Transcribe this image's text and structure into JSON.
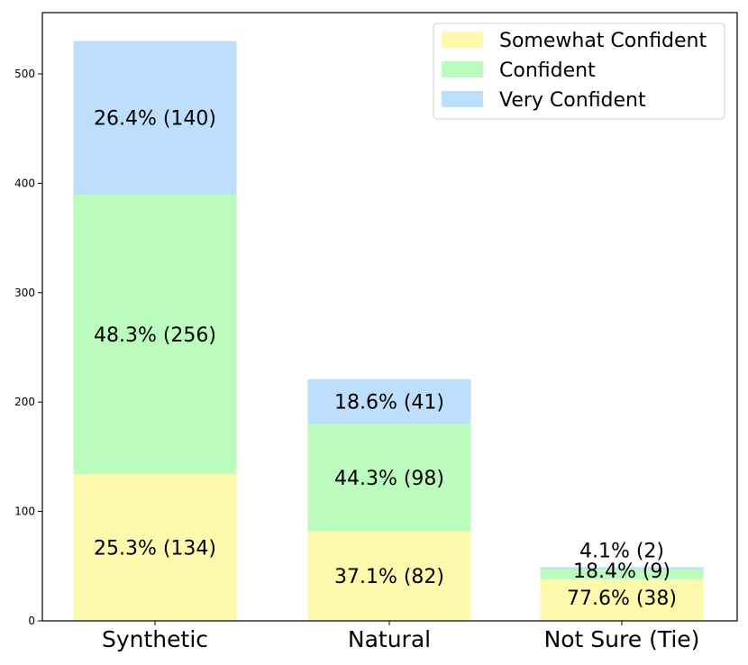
{
  "chart_data": {
    "type": "bar",
    "stacked": true,
    "categories": [
      "Synthetic",
      "Natural",
      "Not Sure (Tie)"
    ],
    "series": [
      {
        "name": "Somewhat Confident",
        "color": "#fff9ad",
        "values": [
          134,
          82,
          38
        ],
        "labels": [
          "25.3% (134)",
          "37.1% (82)",
          "77.6% (38)"
        ]
      },
      {
        "name": "Confident",
        "color": "#bbfbbd",
        "values": [
          256,
          98,
          9
        ],
        "labels": [
          "48.3% (256)",
          "44.3% (98)",
          "18.4% (9)"
        ]
      },
      {
        "name": "Very Confident",
        "color": "#bddffb",
        "values": [
          140,
          41,
          2
        ],
        "labels": [
          "26.4% (140)",
          "18.6% (41)",
          "4.1% (2)"
        ]
      }
    ],
    "yticks": [
      0,
      100,
      200,
      300,
      400,
      500
    ],
    "ylim": [
      0,
      556
    ],
    "legend_position": "top-right",
    "grid": false
  }
}
